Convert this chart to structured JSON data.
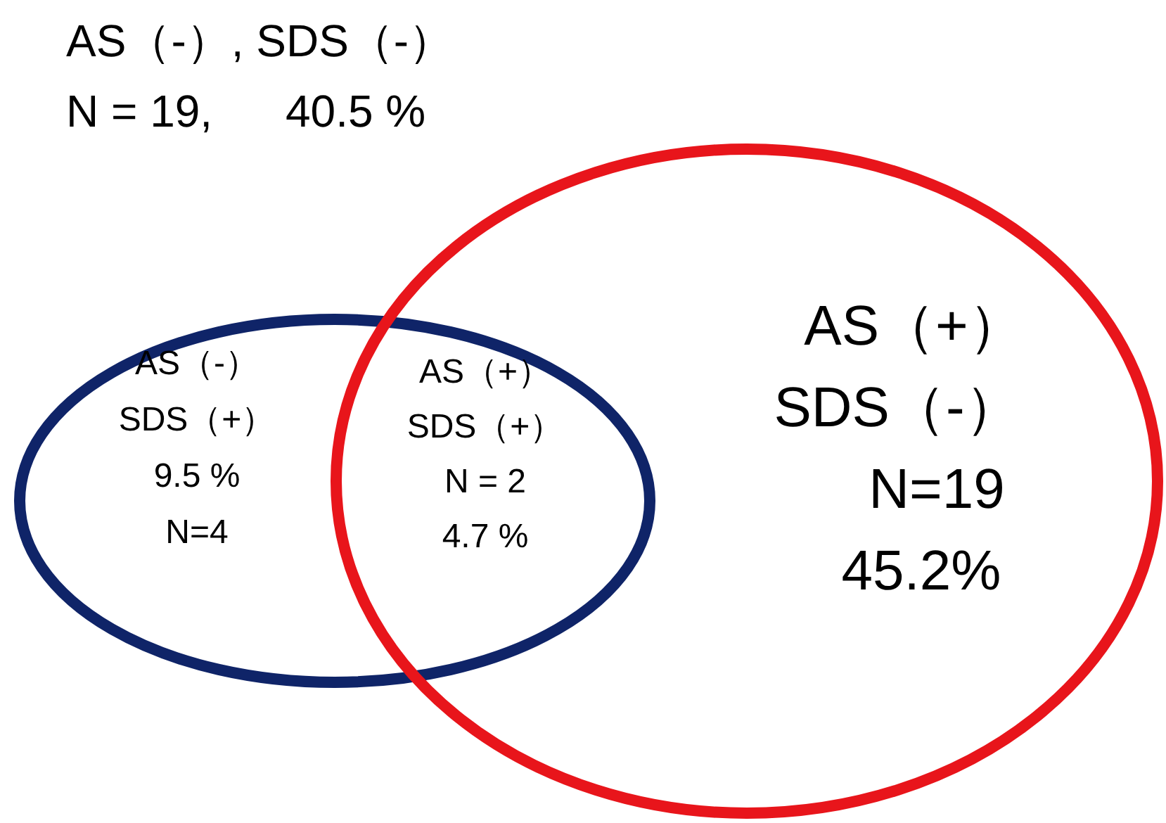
{
  "chart_data": {
    "type": "other",
    "categories": [
      "AS（-）, SDS（-）",
      "AS（-）\nSDS（+）",
      "AS（+）\nSDS（+）",
      "AS（+）\nSDS（-）"
    ],
    "series": [
      {
        "values": [
          19,
          4,
          2,
          19
        ],
        "value_labels": [
          "N = 19,",
          "N=4",
          "N = 2",
          "N=19"
        ]
      },
      {
        "values": [
          40.5,
          9.5,
          4.7,
          45.2
        ],
        "value_labels": [
          "40.5 %",
          "9.5 %",
          "4.7 %",
          "45.2%"
        ]
      }
    ]
  }
}
